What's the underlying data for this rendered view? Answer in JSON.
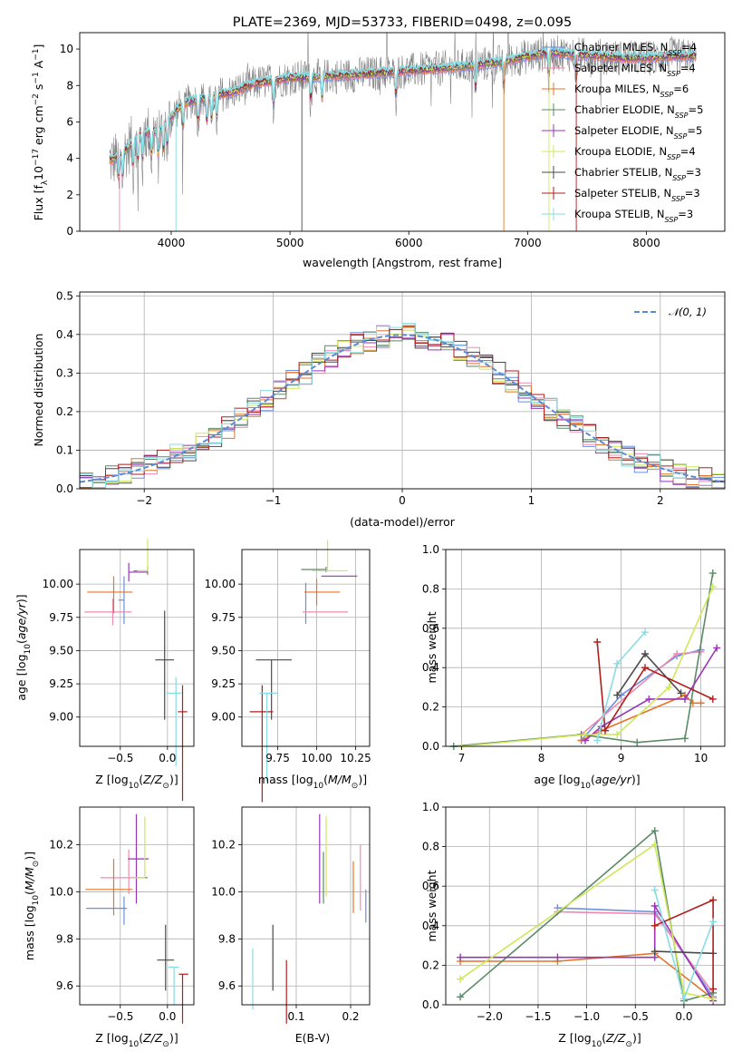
{
  "figure": {
    "title": "PLATE=2369, MJD=53733, FIBERID=0498, z=0.095",
    "colors": {
      "gray_spectrum": "#7f7f7f",
      "normal_curve": "#5b8bd6"
    }
  },
  "models": [
    {
      "name": "Chabrier MILES, N$_{SSP}$=4",
      "label_main": "Chabrier MILES, N",
      "label_sub": "SSP",
      "label_end": "=4",
      "color": "#6a8fe0"
    },
    {
      "name": "Salpeter MILES, N$_{SSP}$=4",
      "label_main": "Salpeter MILES, N",
      "label_sub": "SSP",
      "label_end": "=4",
      "color": "#f08ab0"
    },
    {
      "name": "Kroupa MILES, N$_{SSP}$=6",
      "label_main": "Kroupa MILES, N",
      "label_sub": "SSP",
      "label_end": "=6",
      "color": "#e3762b"
    },
    {
      "name": "Chabrier ELODIE, N$_{SSP}$=5",
      "label_main": "Chabrier ELODIE, N",
      "label_sub": "SSP",
      "label_end": "=5",
      "color": "#5b8a66"
    },
    {
      "name": "Salpeter ELODIE, N$_{SSP}$=5",
      "label_main": "Salpeter ELODIE, N",
      "label_sub": "SSP",
      "label_end": "=5",
      "color": "#9a35b8"
    },
    {
      "name": "Kroupa ELODIE, N$_{SSP}$=4",
      "label_main": "Kroupa ELODIE, N",
      "label_sub": "SSP",
      "label_end": "=4",
      "color": "#cfe85a"
    },
    {
      "name": "Chabrier STELIB, N$_{SSP}$=3",
      "label_main": "Chabrier STELIB, N",
      "label_sub": "SSP",
      "label_end": "=3",
      "color": "#4a4a4a"
    },
    {
      "name": "Salpeter STELIB, N$_{SSP}$=3",
      "label_main": "Salpeter STELIB, N",
      "label_sub": "SSP",
      "label_end": "=3",
      "color": "#b01e1e"
    },
    {
      "name": "Kroupa STELIB, N$_{SSP}$=3",
      "label_main": "Kroupa STELIB, N",
      "label_sub": "SSP",
      "label_end": "=3",
      "color": "#86dde3"
    }
  ],
  "chart_data": [
    {
      "id": "spectrum",
      "type": "line",
      "xlabel": "wavelength [Angstrom, rest frame]",
      "ylabel": "Flux [f$_{\\lambda}$10$^{-17}$ erg cm$^{-2}$ s$^{-1}$ A$^{-1}$]",
      "ylabel_parts": {
        "a": "Flux [f",
        "b": "λ",
        "c": "10",
        "d": "−17",
        "e": " erg cm",
        "f": "−2",
        "g": " s",
        "h": "−1",
        "i": " A",
        "j": "−1",
        "k": "]"
      },
      "xlim": [
        3230,
        8660
      ],
      "ylim": [
        0,
        10.9
      ],
      "xticks": [
        4000,
        5000,
        6000,
        7000,
        8000
      ],
      "yticks": [
        0,
        2,
        4,
        6,
        8,
        10
      ],
      "grid": false,
      "legend": "top-right",
      "continuum_model": {
        "x": [
          3500,
          3600,
          3700,
          3800,
          3900,
          4000,
          4100,
          4200,
          4300,
          4400,
          4500,
          4700,
          5000,
          5300,
          5600,
          6000,
          6400,
          6800,
          7000,
          7200,
          7400,
          7600,
          7800,
          8000,
          8200,
          8400
        ],
        "y": [
          3.9,
          4.3,
          5.1,
          5.4,
          5.5,
          6.3,
          7.0,
          7.2,
          7.3,
          7.5,
          7.6,
          8.1,
          8.4,
          8.5,
          8.6,
          8.8,
          9.0,
          9.3,
          9.6,
          9.8,
          9.7,
          9.6,
          9.5,
          9.5,
          9.6,
          9.6
        ]
      },
      "absorption_features_x": [
        3560,
        3590,
        3680,
        3720,
        3760,
        3835,
        3889,
        3934,
        3968,
        4101,
        4227,
        4300,
        4340,
        4384,
        4861,
        5175,
        5270,
        5890,
        6563,
        6800,
        7180,
        7410
      ],
      "vertical_drops": [
        {
          "x": 3565,
          "series": "Salpeter MILES, N$_{SSP}$=4"
        },
        {
          "x": 4040,
          "series": "Kroupa STELIB, N$_{SSP}$=3"
        },
        {
          "x": 5100,
          "series": "Chabrier STELIB, N$_{SSP}$=3"
        },
        {
          "x": 6800,
          "series": "Kroupa MILES, N$_{SSP}$=6"
        },
        {
          "x": 7180,
          "series": "Kroupa ELODIE, N$_{SSP}$=4"
        },
        {
          "x": 7410,
          "series": "Salpeter STELIB, N$_{SSP}$=3"
        }
      ]
    },
    {
      "id": "residuals",
      "type": "histogram",
      "xlabel": "(data-model)/error",
      "ylabel": "Normed distribution",
      "xlim": [
        -2.5,
        2.5
      ],
      "ylim": [
        0,
        0.51
      ],
      "xticks": [
        -2,
        -1,
        0,
        1,
        2
      ],
      "yticks": [
        0.0,
        0.1,
        0.2,
        0.3,
        0.4,
        0.5
      ],
      "grid": true,
      "legend": "top-right",
      "normal_label": "𝒩(0, 1)",
      "bin_width": 0.1,
      "bin_start": -2.5
    },
    {
      "id": "age_vs_Z",
      "type": "errorbar",
      "xlabel": "Z [log$_{10}$(Z/Z$_\\odot$)]",
      "ylabel": "age [log$_{10}$(age/yr)]",
      "xlim": [
        -0.93,
        0.28
      ],
      "ylim": [
        8.78,
        10.26
      ],
      "xticks": [
        -0.5,
        0.0
      ],
      "yticks": [
        9.0,
        9.25,
        9.5,
        9.75,
        10.0
      ],
      "grid": true,
      "points": [
        {
          "series": 0,
          "x": -0.46,
          "y": 9.88,
          "xerr": [
            0.06,
            0.0
          ],
          "yerr": [
            0.18,
            0.18
          ]
        },
        {
          "series": 1,
          "x": -0.58,
          "y": 9.79,
          "xerr": [
            0.3,
            0.2
          ],
          "yerr": [
            0.1,
            0.1
          ]
        },
        {
          "series": 2,
          "x": -0.57,
          "y": 9.94,
          "xerr": [
            0.28,
            0.2
          ],
          "yerr": [
            0.12,
            0.16
          ]
        },
        {
          "series": 3,
          "x": -0.21,
          "y": 10.1,
          "xerr": [
            0.15,
            0.0
          ],
          "yerr": [
            0.03,
            0.03
          ]
        },
        {
          "series": 4,
          "x": -0.41,
          "y": 10.09,
          "xerr": [
            0.0,
            0.2
          ],
          "yerr": [
            0.07,
            0.07
          ]
        },
        {
          "series": 5,
          "x": -0.21,
          "y": 10.1,
          "xerr": [
            0.11,
            0.0
          ],
          "yerr": [
            0.24,
            0.0
          ]
        },
        {
          "series": 6,
          "x": -0.03,
          "y": 9.43,
          "xerr": [
            0.1,
            0.1
          ],
          "yerr": [
            0.37,
            0.45
          ]
        },
        {
          "series": 7,
          "x": 0.16,
          "y": 9.04,
          "xerr": [
            0.05,
            0.05
          ],
          "yerr": [
            0.2,
            0.67
          ]
        },
        {
          "series": 8,
          "x": 0.09,
          "y": 9.18,
          "xerr": [
            0.1,
            0.06
          ],
          "yerr": [
            0.12,
            0.55
          ]
        }
      ]
    },
    {
      "id": "age_vs_mass",
      "type": "errorbar",
      "xlabel": "mass [log$_{10}$(M/M$_\\odot$)]",
      "ylabel": "",
      "xlim": [
        9.52,
        10.34
      ],
      "ylim": [
        8.78,
        10.26
      ],
      "xticks": [
        9.75,
        10.0,
        10.25
      ],
      "yticks": [
        9.0,
        9.25,
        9.5,
        9.75,
        10.0
      ],
      "grid": true,
      "points": [
        {
          "series": 0,
          "x": 9.93,
          "y": 9.88,
          "xerr": [
            0.0,
            0.0
          ],
          "yerr": [
            0.13,
            0.18
          ]
        },
        {
          "series": 1,
          "x": 10.06,
          "y": 9.79,
          "xerr": [
            0.15,
            0.14
          ],
          "yerr": [
            0.0,
            0.0
          ]
        },
        {
          "series": 2,
          "x": 10.0,
          "y": 9.94,
          "xerr": [
            0.08,
            0.15
          ],
          "yerr": [
            0.1,
            0.1
          ]
        },
        {
          "series": 3,
          "x": 10.06,
          "y": 10.11,
          "xerr": [
            0.16,
            0.0
          ],
          "yerr": [
            0.02,
            0.02
          ]
        },
        {
          "series": 4,
          "x": 10.14,
          "y": 10.06,
          "xerr": [
            0.11,
            0.12
          ],
          "yerr": [
            0.0,
            0.0
          ]
        },
        {
          "series": 5,
          "x": 10.07,
          "y": 10.1,
          "xerr": [
            0.1,
            0.13
          ],
          "yerr": [
            0.23,
            0.0
          ]
        },
        {
          "series": 6,
          "x": 9.71,
          "y": 9.43,
          "xerr": [
            0.1,
            0.13
          ],
          "yerr": [
            0.0,
            0.45
          ]
        },
        {
          "series": 7,
          "x": 9.65,
          "y": 9.04,
          "xerr": [
            0.08,
            0.07
          ],
          "yerr": [
            0.2,
            0.68
          ]
        },
        {
          "series": 8,
          "x": 9.68,
          "y": 9.18,
          "xerr": [
            0.05,
            0.07
          ],
          "yerr": [
            0.0,
            0.66
          ]
        }
      ]
    },
    {
      "id": "weight_vs_age",
      "type": "line",
      "xlabel": "age [log$_{10}$(age/yr)]",
      "ylabel": "mass weight",
      "xlim": [
        6.8,
        10.3
      ],
      "ylim": [
        0.0,
        1.0
      ],
      "xticks": [
        7,
        8,
        9,
        10
      ],
      "yticks": [
        0.0,
        0.2,
        0.4,
        0.6,
        0.8,
        1.0
      ],
      "grid": true,
      "series": [
        {
          "series": 0,
          "x": [
            8.5,
            9.0,
            9.7,
            10.0
          ],
          "y": [
            0.03,
            0.26,
            0.46,
            0.49
          ]
        },
        {
          "series": 1,
          "x": [
            8.5,
            9.7,
            10.0
          ],
          "y": [
            0.06,
            0.47,
            0.48
          ]
        },
        {
          "series": 2,
          "x": [
            8.5,
            8.75,
            9.8,
            9.9,
            10.0
          ],
          "y": [
            0.03,
            0.08,
            0.26,
            0.22,
            0.22
          ]
        },
        {
          "series": 3,
          "x": [
            6.9,
            8.5,
            9.2,
            9.8,
            10.15
          ],
          "y": [
            0.0,
            0.06,
            0.02,
            0.04,
            0.88
          ]
        },
        {
          "series": 4,
          "x": [
            8.55,
            8.75,
            9.35,
            9.8,
            10.2
          ],
          "y": [
            0.03,
            0.1,
            0.24,
            0.24,
            0.5
          ]
        },
        {
          "series": 5,
          "x": [
            7.0,
            8.55,
            8.95,
            9.6,
            10.15
          ],
          "y": [
            0.0,
            0.06,
            0.06,
            0.3,
            0.81
          ]
        },
        {
          "series": 6,
          "x": [
            8.95,
            9.3,
            9.75
          ],
          "y": [
            0.26,
            0.47,
            0.27
          ]
        },
        {
          "series": 7,
          "x": [
            8.7,
            8.8,
            9.3,
            10.15
          ],
          "y": [
            0.53,
            0.08,
            0.4,
            0.24
          ]
        },
        {
          "series": 8,
          "x": [
            8.7,
            8.95,
            9.3
          ],
          "y": [
            0.03,
            0.42,
            0.58
          ]
        }
      ]
    },
    {
      "id": "mass_vs_Z",
      "type": "errorbar",
      "xlabel": "Z [log$_{10}$(Z/Z$_\\odot$)]",
      "ylabel": "mass [log$_{10}$(M/M$_\\odot$)]",
      "xlim": [
        -0.93,
        0.28
      ],
      "ylim": [
        9.52,
        10.36
      ],
      "xticks": [
        -0.5,
        0.0
      ],
      "yticks": [
        9.6,
        9.8,
        10.0,
        10.2
      ],
      "grid": true,
      "points": [
        {
          "series": 0,
          "x": -0.46,
          "y": 9.93,
          "xerr": [
            0.4,
            0.03
          ],
          "yerr": [
            0.05,
            0.07
          ]
        },
        {
          "series": 1,
          "x": -0.41,
          "y": 10.06,
          "xerr": [
            0.3,
            0.1
          ],
          "yerr": [
            0.12,
            0.07
          ]
        },
        {
          "series": 2,
          "x": -0.57,
          "y": 10.01,
          "xerr": [
            0.3,
            0.2
          ],
          "yerr": [
            0.13,
            0.11
          ]
        },
        {
          "series": 3,
          "x": -0.21,
          "y": 10.06,
          "xerr": [
            0.13,
            0.0
          ],
          "yerr": [
            0.0,
            0.0
          ]
        },
        {
          "series": 4,
          "x": -0.33,
          "y": 10.14,
          "xerr": [
            0.09,
            0.13
          ],
          "yerr": [
            0.19,
            0.19
          ]
        },
        {
          "series": 5,
          "x": -0.24,
          "y": 10.06,
          "xerr": [
            0.1,
            0.0
          ],
          "yerr": [
            0.26,
            0.0
          ]
        },
        {
          "series": 6,
          "x": -0.02,
          "y": 9.71,
          "xerr": [
            0.09,
            0.09
          ],
          "yerr": [
            0.15,
            0.13
          ]
        },
        {
          "series": 7,
          "x": 0.16,
          "y": 9.65,
          "xerr": [
            0.04,
            0.06
          ],
          "yerr": [
            0.0,
            0.21
          ]
        },
        {
          "series": 8,
          "x": 0.07,
          "y": 9.68,
          "xerr": [
            0.06,
            0.05
          ],
          "yerr": [
            0.0,
            0.16
          ]
        }
      ]
    },
    {
      "id": "mass_vs_EBV",
      "type": "errorbar",
      "xlabel": "E(B-V)",
      "ylabel": "",
      "xlim": [
        0.0,
        0.235
      ],
      "ylim": [
        9.52,
        10.36
      ],
      "xticks": [
        0.1,
        0.2
      ],
      "yticks": [
        9.6,
        9.8,
        10.0,
        10.2
      ],
      "grid": true,
      "points": [
        {
          "series": 0,
          "x": 0.228,
          "y": 9.93,
          "xerr": [
            0.0,
            0.0
          ],
          "yerr": [
            0.08,
            0.06
          ]
        },
        {
          "series": 1,
          "x": 0.218,
          "y": 10.06,
          "xerr": [
            0.0,
            0.0
          ],
          "yerr": [
            0.14,
            0.14
          ]
        },
        {
          "series": 2,
          "x": 0.205,
          "y": 10.01,
          "xerr": [
            0.0,
            0.0
          ],
          "yerr": [
            0.12,
            0.1
          ]
        },
        {
          "series": 3,
          "x": 0.15,
          "y": 10.06,
          "xerr": [
            0.0,
            0.0
          ],
          "yerr": [
            0.11,
            0.11
          ]
        },
        {
          "series": 4,
          "x": 0.143,
          "y": 10.14,
          "xerr": [
            0.0,
            0.0
          ],
          "yerr": [
            0.19,
            0.19
          ]
        },
        {
          "series": 5,
          "x": 0.155,
          "y": 10.06,
          "xerr": [
            0.0,
            0.0
          ],
          "yerr": [
            0.26,
            0.08
          ]
        },
        {
          "series": 6,
          "x": 0.057,
          "y": 9.71,
          "xerr": [
            0.0,
            0.0
          ],
          "yerr": [
            0.15,
            0.13
          ]
        },
        {
          "series": 7,
          "x": 0.082,
          "y": 9.65,
          "xerr": [
            0.0,
            0.0
          ],
          "yerr": [
            0.06,
            0.21
          ]
        },
        {
          "series": 8,
          "x": 0.02,
          "y": 9.68,
          "xerr": [
            0.0,
            0.0
          ],
          "yerr": [
            0.08,
            0.18
          ]
        }
      ]
    },
    {
      "id": "weight_vs_Z",
      "type": "line",
      "xlabel": "Z [log$_{10}$(Z/Z$_\\odot$)]",
      "ylabel": "mass weight",
      "xlim": [
        -2.45,
        0.42
      ],
      "ylim": [
        0.0,
        1.0
      ],
      "xticks": [
        -2.0,
        -1.5,
        -1.0,
        -0.5,
        0.0
      ],
      "yticks": [
        0.0,
        0.2,
        0.4,
        0.6,
        0.8,
        1.0
      ],
      "grid": true,
      "series": [
        {
          "series": 0,
          "x": [
            -1.3,
            -0.3,
            0.3
          ],
          "y": [
            0.49,
            0.47,
            0.04
          ]
        },
        {
          "series": 1,
          "x": [
            -1.3,
            -0.3,
            0.3
          ],
          "y": [
            0.47,
            0.46,
            0.06
          ]
        },
        {
          "series": 2,
          "x": [
            -2.3,
            -1.3,
            -0.3,
            0.3
          ],
          "y": [
            0.22,
            0.22,
            0.26,
            0.03
          ]
        },
        {
          "series": 3,
          "x": [
            -2.3,
            -0.3,
            0.0,
            0.3
          ],
          "y": [
            0.04,
            0.88,
            0.02,
            0.06
          ]
        },
        {
          "series": 4,
          "x": [
            -2.3,
            -1.3,
            -0.3,
            -0.3,
            0.3
          ],
          "y": [
            0.24,
            0.24,
            0.24,
            0.5,
            0.02
          ]
        },
        {
          "series": 5,
          "x": [
            -2.3,
            -0.3,
            0.0,
            0.3
          ],
          "y": [
            0.13,
            0.81,
            0.06,
            0.03
          ]
        },
        {
          "series": 6,
          "x": [
            -0.3,
            0.3
          ],
          "y": [
            0.27,
            0.26
          ]
        },
        {
          "series": 7,
          "x": [
            -0.3,
            0.3,
            0.3
          ],
          "y": [
            0.4,
            0.53,
            0.08
          ]
        },
        {
          "series": 8,
          "x": [
            -0.3,
            0.0,
            0.3
          ],
          "y": [
            0.58,
            0.03,
            0.42
          ]
        }
      ]
    }
  ]
}
